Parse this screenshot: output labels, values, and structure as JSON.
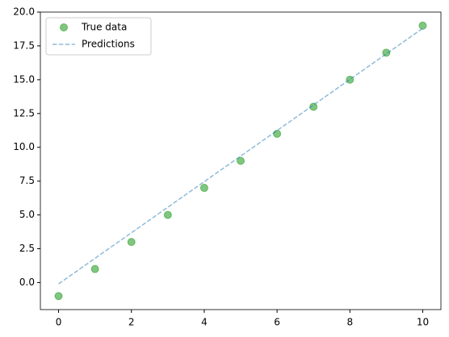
{
  "chart_data": {
    "type": "scatter-line",
    "x": [
      0,
      1,
      2,
      3,
      4,
      5,
      6,
      7,
      8,
      9,
      10
    ],
    "series": [
      {
        "name": "True data",
        "color": "#2ca02c",
        "kind": "points",
        "values": [
          -1,
          1,
          3,
          5,
          7,
          9,
          11,
          13,
          15,
          17,
          19
        ]
      },
      {
        "name": "Predictions",
        "color": "#1f77b4",
        "kind": "dashed-line",
        "values": [
          -0.1,
          1.79,
          3.68,
          5.57,
          7.46,
          9.35,
          11.24,
          13.13,
          15.02,
          16.91,
          18.8
        ]
      }
    ],
    "xlim": [
      -0.5,
      10.5
    ],
    "ylim": [
      -2.0,
      20.0
    ],
    "xticks": [
      0,
      2,
      4,
      6,
      8,
      10
    ],
    "yticks": [
      {
        "value": 0,
        "label": "0.0"
      },
      {
        "value": 2.5,
        "label": "2.5"
      },
      {
        "value": 5,
        "label": "5.0"
      },
      {
        "value": 7.5,
        "label": "7.5"
      },
      {
        "value": 10,
        "label": "10.0"
      },
      {
        "value": 12.5,
        "label": "12.5"
      },
      {
        "value": 15,
        "label": "15.0"
      },
      {
        "value": 17.5,
        "label": "17.5"
      },
      {
        "value": 20,
        "label": "20.0"
      }
    ],
    "grid": false,
    "legend": "upper-left"
  }
}
